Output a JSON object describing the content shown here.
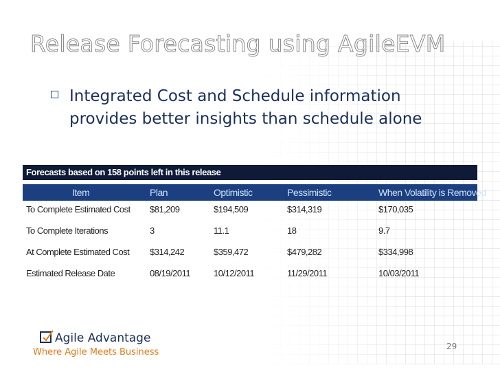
{
  "header": {
    "title": "Release Forecasting using AgileEVM"
  },
  "bullet": "Integrated Cost and Schedule information provides better insights than schedule alone",
  "table": {
    "caption": "Forecasts based on 158 points left in this release",
    "columns": [
      "Item",
      "Plan",
      "Optimistic",
      "Pessimistic",
      "When Volatility is Removed"
    ],
    "rows": [
      [
        "To Complete Estimated Cost",
        "$81,209",
        "$194,509",
        "$314,319",
        "$170,035"
      ],
      [
        "To Complete Iterations",
        "3",
        "11.1",
        "18",
        "9.7"
      ],
      [
        "At Complete Estimated Cost",
        "$314,242",
        "$359,472",
        "$479,282",
        "$334,998"
      ],
      [
        "Estimated Release Date",
        "08/19/2011",
        "10/12/2011",
        "11/29/2011",
        "10/03/2011"
      ]
    ]
  },
  "footer": {
    "logo": "Agile Advantage",
    "tagline": "Where Agile Meets Business",
    "page": "29"
  }
}
